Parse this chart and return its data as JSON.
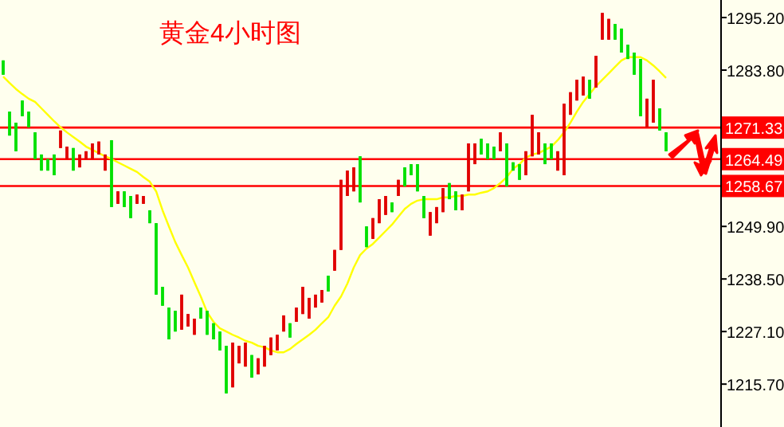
{
  "chart_data": {
    "type": "candlestick",
    "title": "黄金4小时图",
    "categories": [
      null,
      null,
      null,
      null,
      null,
      null,
      null,
      null,
      null,
      null,
      null,
      null,
      null,
      null,
      null,
      null,
      null,
      null,
      null,
      null,
      null,
      null,
      null,
      null,
      null,
      null,
      null,
      null,
      null,
      null,
      null,
      null,
      null,
      null,
      null,
      null,
      null,
      null,
      null,
      null,
      null,
      null,
      null,
      null,
      null,
      null,
      null,
      null,
      null,
      null,
      null,
      null,
      null,
      null,
      null,
      null,
      null,
      null,
      null,
      null,
      null,
      null,
      null,
      null,
      null,
      null,
      null,
      null,
      null,
      null,
      null,
      null,
      null,
      null,
      null,
      null,
      null,
      null,
      null,
      null,
      null,
      null,
      null,
      null,
      null,
      null,
      null,
      null,
      null,
      null,
      null,
      null,
      null,
      null,
      null,
      null,
      null,
      null,
      null,
      null,
      null,
      null,
      null,
      null,
      null
    ],
    "ohlc": [
      [
        1285.9,
        1285.9,
        1282.8,
        1282.8
      ],
      [
        1274.8,
        1274.8,
        1269.6,
        1269.6
      ],
      [
        1272.4,
        1272.4,
        1266.2,
        1266.2
      ],
      [
        1277.2,
        1277.2,
        1273.8,
        1273.8
      ],
      [
        1274.8,
        1274.8,
        1271.4,
        1271.4
      ],
      [
        1270.3,
        1270.3,
        1264.5,
        1264.5
      ],
      [
        1265.5,
        1265.5,
        1262.0,
        1262.0
      ],
      [
        1264.5,
        1264.5,
        1262.0,
        1262.0
      ],
      [
        1265.5,
        1265.5,
        1261.0,
        1261.0
      ],
      [
        1266.9,
        1270.7,
        1266.9,
        1270.7
      ],
      [
        1264.5,
        1267.2,
        1264.5,
        1267.2
      ],
      [
        1266.9,
        1266.9,
        1262.0,
        1262.0
      ],
      [
        1262.7,
        1265.5,
        1262.7,
        1265.5
      ],
      [
        1264.5,
        1266.2,
        1264.5,
        1266.2
      ],
      [
        1264.5,
        1267.9,
        1264.5,
        1267.9
      ],
      [
        1265.5,
        1268.3,
        1265.5,
        1268.3
      ],
      [
        1262.0,
        1265.5,
        1262.0,
        1265.5
      ],
      [
        1268.6,
        1268.6,
        1254.1,
        1254.1
      ],
      [
        1254.8,
        1257.5,
        1254.8,
        1257.5
      ],
      [
        1257.5,
        1257.5,
        1254.1,
        1254.1
      ],
      [
        1256.5,
        1256.5,
        1251.7,
        1251.7
      ],
      [
        1254.8,
        1256.8,
        1254.8,
        1256.8
      ],
      [
        1254.8,
        1256.5,
        1254.8,
        1256.5
      ],
      [
        1253.4,
        1253.4,
        1250.6,
        1250.6
      ],
      [
        1250.6,
        1250.6,
        1235.1,
        1235.1
      ],
      [
        1236.8,
        1236.8,
        1232.7,
        1232.7
      ],
      [
        1232.3,
        1232.3,
        1225.4,
        1225.4
      ],
      [
        1231.6,
        1231.6,
        1227.1,
        1227.1
      ],
      [
        1227.5,
        1235.1,
        1227.5,
        1235.1
      ],
      [
        1228.2,
        1230.9,
        1228.2,
        1230.9
      ],
      [
        1226.4,
        1229.9,
        1226.4,
        1229.9
      ],
      [
        1232.3,
        1232.3,
        1229.9,
        1229.9
      ],
      [
        1231.6,
        1231.6,
        1226.4,
        1226.4
      ],
      [
        1228.9,
        1228.9,
        1225.4,
        1225.4
      ],
      [
        1227.1,
        1227.1,
        1223.0,
        1223.0
      ],
      [
        1224.0,
        1224.0,
        1213.7,
        1213.7
      ],
      [
        1215.0,
        1224.7,
        1215.0,
        1224.7
      ],
      [
        1220.2,
        1224.0,
        1220.2,
        1224.0
      ],
      [
        1219.5,
        1224.7,
        1219.5,
        1224.7
      ],
      [
        1222.0,
        1222.0,
        1217.1,
        1217.1
      ],
      [
        1217.8,
        1221.3,
        1217.8,
        1221.3
      ],
      [
        1219.5,
        1224.0,
        1219.5,
        1224.0
      ],
      [
        1222.0,
        1225.8,
        1222.0,
        1225.8
      ],
      [
        1223.0,
        1226.4,
        1223.0,
        1226.4
      ],
      [
        1227.1,
        1230.6,
        1227.1,
        1230.6
      ],
      [
        1228.9,
        1228.9,
        1225.8,
        1225.8
      ],
      [
        1229.2,
        1232.3,
        1229.2,
        1232.3
      ],
      [
        1230.9,
        1236.8,
        1230.9,
        1236.8
      ],
      [
        1229.9,
        1234.4,
        1229.9,
        1234.4
      ],
      [
        1232.3,
        1235.1,
        1232.3,
        1235.1
      ],
      [
        1233.4,
        1236.1,
        1233.4,
        1236.1
      ],
      [
        1239.2,
        1239.2,
        1235.8,
        1235.8
      ],
      [
        1240.3,
        1244.8,
        1240.3,
        1244.8
      ],
      [
        1244.8,
        1260.0,
        1244.8,
        1260.0
      ],
      [
        1256.5,
        1262.0,
        1256.5,
        1262.0
      ],
      [
        1257.5,
        1262.7,
        1257.5,
        1262.7
      ],
      [
        1265.1,
        1265.1,
        1255.1,
        1255.1
      ],
      [
        1249.9,
        1249.9,
        1245.4,
        1245.4
      ],
      [
        1247.2,
        1251.7,
        1247.2,
        1251.7
      ],
      [
        1250.6,
        1255.8,
        1250.6,
        1255.8
      ],
      [
        1252.4,
        1256.5,
        1252.4,
        1256.5
      ],
      [
        1255.1,
        1255.1,
        1253.0,
        1253.0
      ],
      [
        1256.5,
        1260.0,
        1256.5,
        1260.0
      ],
      [
        1262.7,
        1262.7,
        1258.6,
        1258.6
      ],
      [
        1263.4,
        1263.4,
        1261.0,
        1261.0
      ],
      [
        1263.4,
        1263.4,
        1257.5,
        1257.5
      ],
      [
        1256.5,
        1256.5,
        1251.7,
        1251.7
      ],
      [
        1247.9,
        1253.0,
        1247.9,
        1253.0
      ],
      [
        1250.6,
        1254.1,
        1250.6,
        1254.1
      ],
      [
        1253.0,
        1258.2,
        1253.0,
        1258.2
      ],
      [
        1259.3,
        1259.3,
        1255.8,
        1255.8
      ],
      [
        1257.5,
        1257.5,
        1253.4,
        1253.4
      ],
      [
        1253.4,
        1256.8,
        1253.4,
        1256.8
      ],
      [
        1257.5,
        1267.9,
        1257.5,
        1267.9
      ],
      [
        1263.4,
        1267.9,
        1263.4,
        1267.9
      ],
      [
        1268.9,
        1268.9,
        1265.5,
        1265.5
      ],
      [
        1267.9,
        1267.9,
        1264.5,
        1264.5
      ],
      [
        1267.2,
        1267.2,
        1264.5,
        1264.5
      ],
      [
        1266.2,
        1270.3,
        1266.2,
        1270.3
      ],
      [
        1267.9,
        1267.9,
        1258.6,
        1258.6
      ],
      [
        1263.8,
        1263.8,
        1262.0,
        1262.0
      ],
      [
        1263.4,
        1263.4,
        1260.0,
        1260.0
      ],
      [
        1261.0,
        1266.2,
        1261.0,
        1266.2
      ],
      [
        1265.1,
        1274.1,
        1265.1,
        1274.1
      ],
      [
        1265.5,
        1270.3,
        1265.5,
        1270.3
      ],
      [
        1267.9,
        1267.9,
        1263.4,
        1263.4
      ],
      [
        1267.9,
        1267.9,
        1264.5,
        1264.5
      ],
      [
        1262.0,
        1266.2,
        1262.0,
        1266.2
      ],
      [
        1261.0,
        1276.5,
        1261.0,
        1276.5
      ],
      [
        1274.1,
        1279.0,
        1274.1,
        1279.0
      ],
      [
        1277.2,
        1281.7,
        1277.2,
        1281.7
      ],
      [
        1278.3,
        1282.4,
        1278.3,
        1282.4
      ],
      [
        1281.7,
        1281.7,
        1277.6,
        1277.6
      ],
      [
        1280.0,
        1286.9,
        1280.0,
        1286.9
      ],
      [
        1290.4,
        1296.2,
        1290.4,
        1296.2
      ],
      [
        1290.4,
        1294.9,
        1290.4,
        1294.9
      ],
      [
        1293.8,
        1293.8,
        1290.4,
        1290.4
      ],
      [
        1292.8,
        1292.8,
        1287.6,
        1287.6
      ],
      [
        1289.3,
        1289.3,
        1286.2,
        1286.2
      ],
      [
        1287.6,
        1287.6,
        1282.8,
        1282.8
      ],
      [
        1286.2,
        1286.2,
        1273.8,
        1273.8
      ],
      [
        1271.4,
        1277.6,
        1271.4,
        1277.6
      ],
      [
        1272.4,
        1281.7,
        1272.4,
        1281.7
      ],
      [
        1275.5,
        1275.5,
        1270.7,
        1270.7
      ],
      [
        1270.3,
        1270.3,
        1266.2,
        1266.2
      ]
    ],
    "colors": [
      "#00e000",
      "#00e000",
      "#00e000",
      "#00e000",
      "#00e000",
      "#00e000",
      "#00e000",
      "#00e000",
      "#00e000",
      "#e00000",
      "#e00000",
      "#00e000",
      "#e00000",
      "#e00000",
      "#e00000",
      "#e00000",
      "#e00000",
      "#00e000",
      "#e00000",
      "#00e000",
      "#00e000",
      "#e00000",
      "#e00000",
      "#00e000",
      "#00e000",
      "#00e000",
      "#00e000",
      "#00e000",
      "#e00000",
      "#e00000",
      "#e00000",
      "#00e000",
      "#00e000",
      "#00e000",
      "#00e000",
      "#00e000",
      "#e00000",
      "#e00000",
      "#e00000",
      "#00e000",
      "#e00000",
      "#e00000",
      "#e00000",
      "#e00000",
      "#e00000",
      "#00e000",
      "#e00000",
      "#e00000",
      "#e00000",
      "#e00000",
      "#e00000",
      "#00e000",
      "#e00000",
      "#e00000",
      "#e00000",
      "#e00000",
      "#00e000",
      "#00e000",
      "#e00000",
      "#e00000",
      "#e00000",
      "#00e000",
      "#e00000",
      "#00e000",
      "#00e000",
      "#00e000",
      "#00e000",
      "#e00000",
      "#e00000",
      "#e00000",
      "#00e000",
      "#00e000",
      "#e00000",
      "#e00000",
      "#e00000",
      "#00e000",
      "#00e000",
      "#00e000",
      "#e00000",
      "#00e000",
      "#00e000",
      "#00e000",
      "#e00000",
      "#e00000",
      "#e00000",
      "#00e000",
      "#00e000",
      "#e00000",
      "#e00000",
      "#e00000",
      "#e00000",
      "#e00000",
      "#00e000",
      "#e00000",
      "#e00000",
      "#e00000",
      "#00e000",
      "#00e000",
      "#00e000",
      "#00e000",
      "#00e000",
      "#e00000",
      "#e00000",
      "#00e000",
      "#00e000"
    ],
    "series": [
      {
        "type": "line",
        "color": "#ffff00",
        "values": [
          1282.4,
          1281.0,
          1279.7,
          1278.6,
          1277.6,
          1276.9,
          1275.5,
          1274.1,
          1272.7,
          1271.4,
          1270.3,
          1269.3,
          1268.3,
          1267.2,
          1266.5,
          1265.8,
          1265.1,
          1264.5,
          1263.8,
          1263.1,
          1262.4,
          1261.7,
          1260.6,
          1259.6,
          1257.5,
          1253.4,
          1249.9,
          1246.5,
          1243.7,
          1241.0,
          1237.8,
          1234.7,
          1231.3,
          1229.2,
          1227.8,
          1227.1,
          1226.4,
          1225.8,
          1225.1,
          1224.7,
          1224.0,
          1223.7,
          1223.0,
          1222.6,
          1222.6,
          1223.3,
          1224.4,
          1225.4,
          1226.4,
          1227.5,
          1228.9,
          1230.2,
          1232.7,
          1234.7,
          1237.5,
          1241.0,
          1243.7,
          1245.1,
          1246.1,
          1247.5,
          1248.9,
          1250.3,
          1252.0,
          1253.7,
          1254.8,
          1255.5,
          1255.8,
          1255.8,
          1255.8,
          1256.2,
          1256.2,
          1256.5,
          1256.5,
          1256.8,
          1256.8,
          1257.2,
          1257.5,
          1258.2,
          1259.3,
          1260.6,
          1262.4,
          1263.4,
          1264.8,
          1265.5,
          1265.8,
          1266.5,
          1267.2,
          1268.6,
          1270.3,
          1272.4,
          1274.8,
          1276.9,
          1278.6,
          1280.3,
          1281.7,
          1283.1,
          1284.5,
          1285.9,
          1286.6,
          1286.6,
          1286.6,
          1285.9,
          1284.8,
          1283.5,
          1282.1
        ]
      }
    ],
    "ylim": [
      1206.4,
      1299.0
    ],
    "yticks": [
      {
        "value": 1295.2,
        "label": "1295.20"
      },
      {
        "value": 1283.8,
        "label": "1283.80"
      },
      {
        "value": 1249.9,
        "label": "1249.90"
      },
      {
        "value": 1238.5,
        "label": "1238.50"
      },
      {
        "value": 1227.1,
        "label": "1227.10"
      },
      {
        "value": 1215.7,
        "label": "1215.70"
      }
    ],
    "ref_lines": [
      {
        "axis": "y",
        "value": 1271.33,
        "label": "1271.33",
        "color": "#ff0000"
      },
      {
        "axis": "y",
        "value": 1264.49,
        "label": "1264.49",
        "color": "#ff0000"
      },
      {
        "axis": "y",
        "value": 1258.67,
        "label": "1258.67",
        "color": "#ff0000"
      }
    ],
    "line_style": "solid"
  }
}
